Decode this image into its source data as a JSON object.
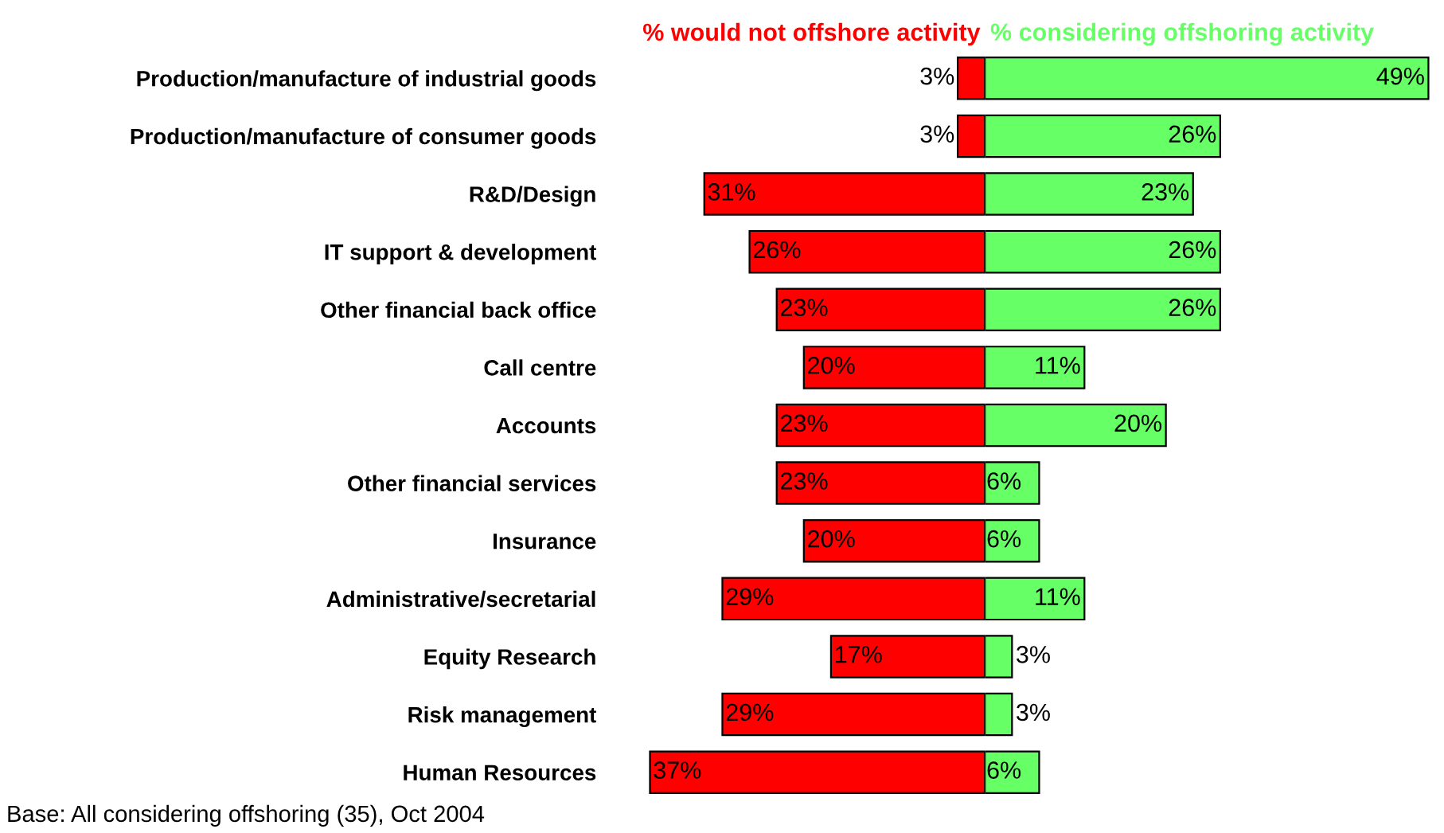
{
  "chart_data": [
    {
      "type": "bar",
      "orientation": "horizontal",
      "tick_labels": "y",
      "categories": [
        "Production/manufacture of industrial goods",
        "Production/manufacture of consumer goods",
        "R&D/Design",
        "IT support & development",
        "Other financial back office",
        "Call centre",
        "Accounts",
        "Other financial services",
        "Insurance",
        "Administrative/secretarial",
        "Equity Research",
        "Risk management",
        "Human Resources"
      ],
      "series": [
        {
          "name": "% would not offshore activity",
          "color": "#ff0000",
          "values": [
            3,
            3,
            31,
            26,
            23,
            20,
            23,
            23,
            20,
            29,
            17,
            29,
            37
          ],
          "value_labels": [
            "3%",
            "3%",
            "31%",
            "26%",
            "23%",
            "20%",
            "23%",
            "23%",
            "20%",
            "29%",
            "17%",
            "29%",
            "37%"
          ]
        }
      ],
      "annotations": [
        "Base: All considering offshoring (35), Oct 2004"
      ]
    },
    {
      "type": "bar",
      "orientation": "horizontal",
      "tick_labels": false,
      "categories": [
        null,
        null,
        null,
        null,
        null,
        null,
        null,
        null,
        null,
        null,
        null,
        null,
        null
      ],
      "series": [
        {
          "name": "% considering offshoring activity",
          "color": "#66ff66",
          "values": [
            49,
            26,
            23,
            26,
            26,
            11,
            20,
            6,
            6,
            11,
            3,
            3,
            6
          ],
          "value_labels": [
            "49%",
            "26%",
            "23%",
            "26%",
            "26%",
            "11%",
            "20%",
            "6%",
            "6%",
            "11%",
            "3%",
            "3%",
            "6%"
          ]
        }
      ]
    }
  ]
}
